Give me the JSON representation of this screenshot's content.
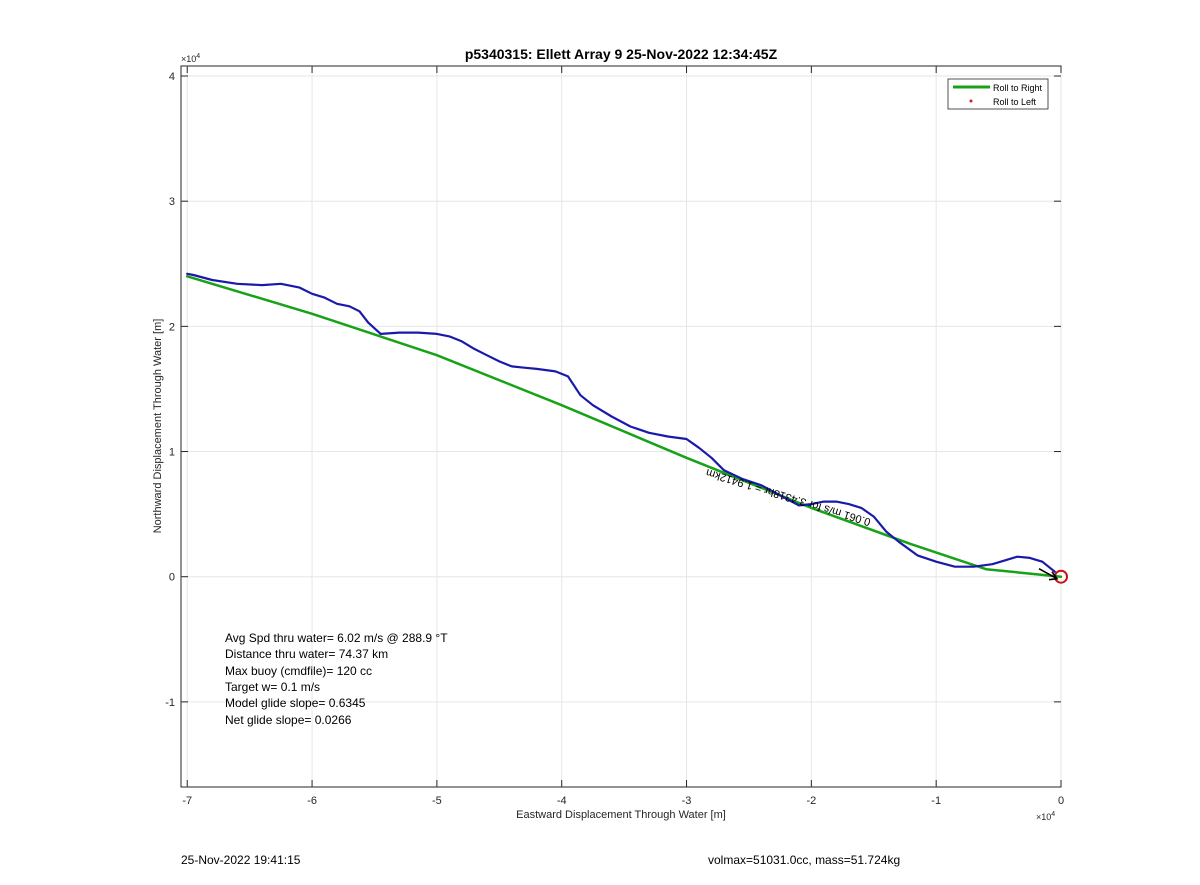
{
  "chart_data": {
    "type": "line",
    "title": "p5340315: Ellett Array 9 25-Nov-2022 12:34:45Z",
    "xlabel": "Eastward Displacement Through Water [m]",
    "ylabel": "Northward Displacement Through Water [m]",
    "x_exponent_label": "×10^4",
    "y_exponent_label": "×10^4",
    "x_exp_base": "×10",
    "x_exp_power": "4",
    "y_exp_base": "×10",
    "y_exp_power": "4",
    "xlim": [
      -7.05,
      0.0
    ],
    "ylim": [
      -1.68,
      4.08
    ],
    "xticks": [
      -7,
      -6,
      -5,
      -4,
      -3,
      -2,
      -1,
      0
    ],
    "yticks": [
      -1,
      0,
      1,
      2,
      3,
      4
    ],
    "xtick_labels": [
      "-7",
      "-6",
      "-5",
      "-4",
      "-3",
      "-2",
      "-1",
      "0"
    ],
    "ytick_labels": [
      "-1",
      "0",
      "1",
      "2",
      "3",
      "4"
    ],
    "grid": true,
    "legend_position": "top-right",
    "legend": [
      {
        "label": "Roll to Right",
        "color": "#18a218",
        "marker": "line"
      },
      {
        "label": "Roll to Left",
        "color": "#e01818",
        "marker": "dot"
      }
    ],
    "series": [
      {
        "name": "Roll to Right",
        "color": "#18a218",
        "x": [
          -7.0,
          -6.0,
          -5.0,
          -4.0,
          -3.0,
          -2.0,
          -1.2,
          -0.6,
          -0.2,
          0.0
        ],
        "y": [
          2.4,
          2.1,
          1.77,
          1.37,
          0.95,
          0.55,
          0.26,
          0.06,
          0.02,
          0.0
        ]
      },
      {
        "name": "track",
        "color": "#1a1aaa",
        "x": [
          -7.0,
          -6.95,
          -6.8,
          -6.6,
          -6.4,
          -6.25,
          -6.1,
          -6.0,
          -5.9,
          -5.8,
          -5.7,
          -5.62,
          -5.55,
          -5.45,
          -5.3,
          -5.15,
          -5.0,
          -4.9,
          -4.8,
          -4.7,
          -4.6,
          -4.5,
          -4.4,
          -4.3,
          -4.2,
          -4.05,
          -3.95,
          -3.85,
          -3.75,
          -3.6,
          -3.45,
          -3.3,
          -3.15,
          -3.0,
          -2.9,
          -2.8,
          -2.7,
          -2.55,
          -2.4,
          -2.25,
          -2.1,
          -2.0,
          -1.9,
          -1.8,
          -1.7,
          -1.6,
          -1.5,
          -1.4,
          -1.3,
          -1.15,
          -1.0,
          -0.85,
          -0.7,
          -0.55,
          -0.45,
          -0.35,
          -0.25,
          -0.15,
          -0.05
        ],
        "y": [
          2.42,
          2.41,
          2.37,
          2.34,
          2.33,
          2.34,
          2.31,
          2.26,
          2.23,
          2.18,
          2.16,
          2.12,
          2.03,
          1.94,
          1.95,
          1.95,
          1.94,
          1.92,
          1.88,
          1.82,
          1.77,
          1.72,
          1.68,
          1.67,
          1.66,
          1.64,
          1.6,
          1.45,
          1.37,
          1.28,
          1.2,
          1.15,
          1.12,
          1.1,
          1.03,
          0.95,
          0.85,
          0.78,
          0.73,
          0.65,
          0.57,
          0.58,
          0.6,
          0.6,
          0.58,
          0.55,
          0.48,
          0.36,
          0.28,
          0.17,
          0.12,
          0.08,
          0.08,
          0.1,
          0.13,
          0.16,
          0.15,
          0.12,
          0.04
        ]
      }
    ],
    "end_marker": {
      "x": 0.0,
      "y": 0.0,
      "color": "#cc1111"
    },
    "track_annotation": {
      "text": "0.061 m/s for 3.4318hr = 1.9412km",
      "x": -1.52,
      "y": 0.46,
      "rotation_deg": 197
    },
    "stats": [
      "Avg Spd thru water=  6.02 m/s @ 288.9 °T",
      "Distance thru water= 74.37 km",
      "Max buoy (cmdfile)= 120 cc",
      "Target w= 0.1 m/s",
      "Model glide slope= 0.6345",
      "Net glide slope= 0.0266"
    ]
  },
  "footer": {
    "timestamp": "25-Nov-2022 19:41:15",
    "params": "volmax=51031.0cc, mass=51.724kg"
  }
}
